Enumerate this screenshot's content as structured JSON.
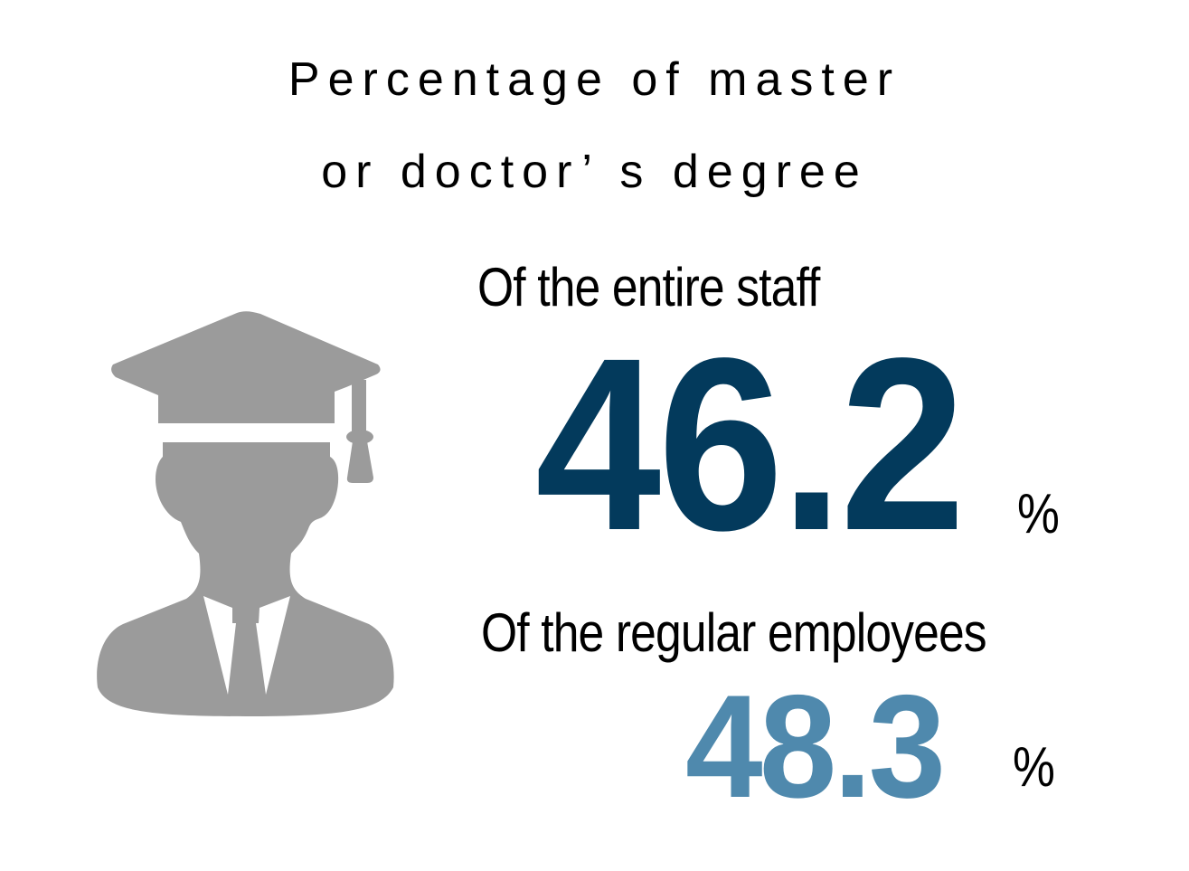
{
  "title": {
    "line1": "Percentage of master",
    "line2": "or doctor’ s degree"
  },
  "icon": "graduate-person-icon",
  "stats": [
    {
      "label": "Of the entire staff",
      "value": "46.2",
      "unit": "%",
      "color": "#033a5c"
    },
    {
      "label": "Of the regular employees",
      "value": "48.3",
      "unit": "%",
      "color": "#4f89ad"
    }
  ],
  "colors": {
    "icon": "#9b9b9b"
  }
}
